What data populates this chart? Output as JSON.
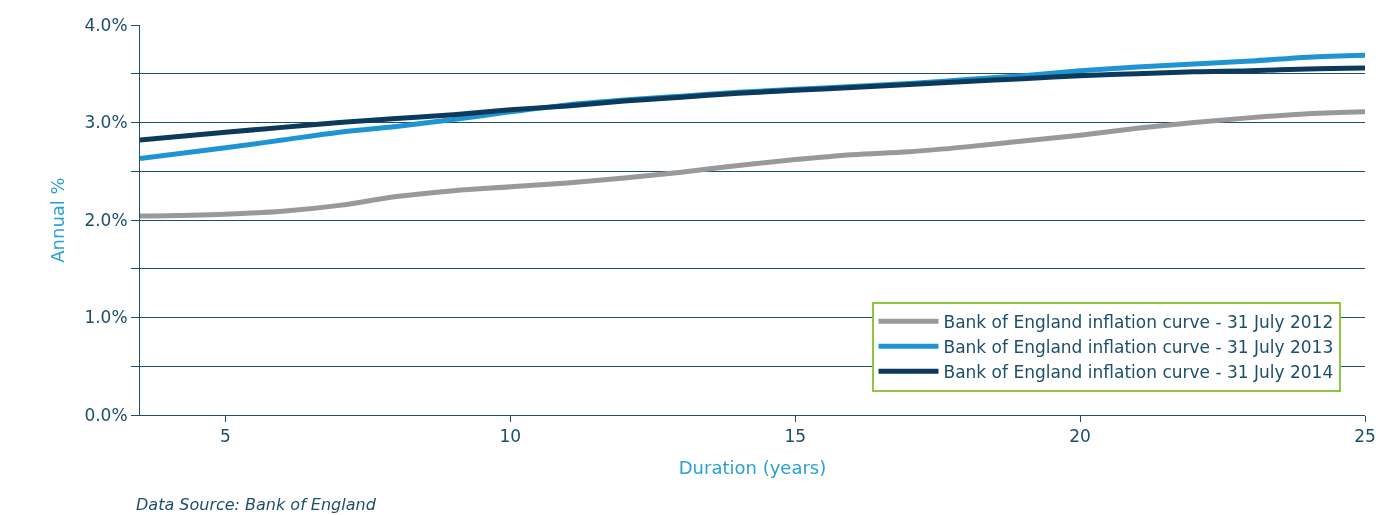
{
  "chart_data": {
    "type": "line",
    "xlabel": "Duration (years)",
    "ylabel": "Annual %",
    "annotations": [
      "Data Source: Bank of England"
    ],
    "x": [
      3.5,
      5,
      6,
      7,
      8,
      9,
      10,
      11,
      12,
      13,
      14,
      15,
      16,
      17,
      18,
      19,
      20,
      21,
      22,
      23,
      24,
      25
    ],
    "series": [
      {
        "name": "Bank of England inflation curve - 31 July 2012",
        "color": "#999999",
        "values": [
          2.04,
          2.06,
          2.09,
          2.15,
          2.24,
          2.3,
          2.34,
          2.38,
          2.43,
          2.49,
          2.56,
          2.62,
          2.67,
          2.7,
          2.75,
          2.81,
          2.87,
          2.94,
          3.0,
          3.05,
          3.09,
          3.11
        ]
      },
      {
        "name": "Bank of England inflation curve - 31 July 2013",
        "color": "#1f94d2",
        "values": [
          2.63,
          2.74,
          2.82,
          2.9,
          2.96,
          3.03,
          3.11,
          3.18,
          3.23,
          3.27,
          3.31,
          3.34,
          3.37,
          3.4,
          3.44,
          3.48,
          3.53,
          3.57,
          3.6,
          3.63,
          3.67,
          3.69
        ]
      },
      {
        "name": "Bank of England inflation curve - 31 July 2014",
        "color": "#0b3a5c",
        "values": [
          2.82,
          2.9,
          2.95,
          3.0,
          3.04,
          3.08,
          3.13,
          3.17,
          3.22,
          3.26,
          3.3,
          3.33,
          3.36,
          3.39,
          3.42,
          3.45,
          3.48,
          3.5,
          3.52,
          3.53,
          3.55,
          3.56
        ]
      }
    ],
    "xlim": [
      3.5,
      25
    ],
    "xticks": [
      5,
      10,
      15,
      20,
      25
    ],
    "ylim": [
      0,
      4
    ],
    "yticks": [
      {
        "value": 0,
        "label": "0.0%"
      },
      {
        "value": 0.5,
        "label": null
      },
      {
        "value": 1,
        "label": "1.0%"
      },
      {
        "value": 1.5,
        "label": null
      },
      {
        "value": 2,
        "label": "2.0%"
      },
      {
        "value": 2.5,
        "label": null
      },
      {
        "value": 3,
        "label": "3.0%"
      },
      {
        "value": 3.5,
        "label": null
      },
      {
        "value": 4,
        "label": "4.0%"
      }
    ],
    "grid": "y",
    "legend": "bottom right",
    "marker": "none",
    "line_style": "solid"
  }
}
